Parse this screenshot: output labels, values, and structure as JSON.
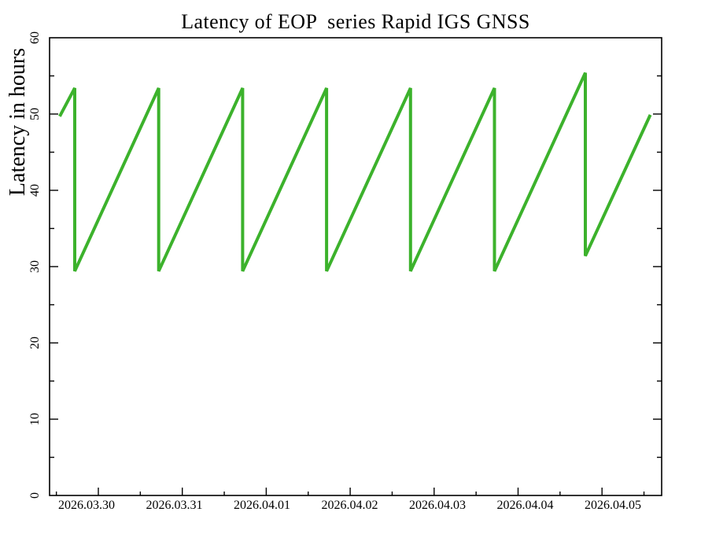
{
  "page": {
    "background_color": "#ffffff",
    "text_color": "#000000"
  },
  "chart_data": {
    "type": "line",
    "title": "Latency of EOP  series Rapid IGS GNSS",
    "xlabel": "",
    "ylabel": "Latency in hours",
    "legend": "none",
    "grid": false,
    "line_color": "#3cb22c",
    "axis_color": "#000000",
    "ylim": [
      0,
      60
    ],
    "y_major_ticks": [
      0,
      10,
      20,
      30,
      40,
      50,
      60
    ],
    "y_minor_ticks": [
      5,
      15,
      25,
      35,
      45,
      55
    ],
    "x_tick_labels": [
      "2026.03.30",
      "2026.03.31",
      "2026.04.01",
      "2026.04.02",
      "2026.04.03",
      "2026.04.04",
      "2026.04.05"
    ],
    "x_unit": "days relative to 2026.03.30 tick",
    "x_range_days": [
      -0.581,
      6.711
    ],
    "shape": "daily sawtooth: latency grows 24 h per day, resets at each new release",
    "points": [
      [
        -0.46,
        49.7
      ],
      [
        -0.281,
        53.4
      ],
      [
        -0.281,
        29.4
      ],
      [
        0.719,
        53.4
      ],
      [
        0.719,
        29.4
      ],
      [
        1.719,
        53.4
      ],
      [
        1.719,
        29.4
      ],
      [
        2.719,
        53.4
      ],
      [
        2.719,
        29.4
      ],
      [
        3.719,
        53.4
      ],
      [
        3.719,
        29.4
      ],
      [
        4.719,
        53.4
      ],
      [
        4.719,
        29.4
      ],
      [
        5.801,
        55.4
      ],
      [
        5.801,
        31.4
      ],
      [
        6.575,
        49.9
      ]
    ]
  }
}
